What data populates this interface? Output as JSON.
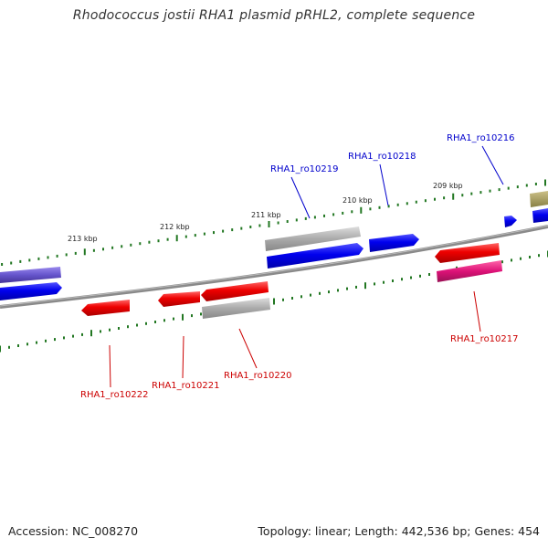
{
  "title": "Rhodococcus jostii RHA1 plasmid pRHL2, complete sequence",
  "footer": {
    "accession": "Accession: NC_008270",
    "topology": "Topology: linear; Length: 442,536 bp; Genes: 454"
  },
  "ticks": [
    {
      "label": "213 kbp"
    },
    {
      "label": "212 kbp"
    },
    {
      "label": "211 kbp"
    },
    {
      "label": "210 kbp"
    },
    {
      "label": "209 kbp"
    }
  ],
  "gene_labels": [
    {
      "text": "RHA1_ro10219",
      "color": "#0000cc"
    },
    {
      "text": "RHA1_ro10218",
      "color": "#0000cc"
    },
    {
      "text": "RHA1_ro10216",
      "color": "#0000cc"
    },
    {
      "text": "RHA1_ro10222",
      "color": "#cc0000"
    },
    {
      "text": "RHA1_ro10221",
      "color": "#cc0000"
    },
    {
      "text": "RHA1_ro10220",
      "color": "#cc0000"
    },
    {
      "text": "RHA1_ro10217",
      "color": "#cc0000"
    }
  ],
  "colors": {
    "forward": "#0000ee",
    "reverse": "#ee0000",
    "gray": "#aaaaaa",
    "purple": "#6655cc",
    "magenta": "#dd1177",
    "olive": "#aaa066",
    "backbone": "#777777",
    "tick": "#227722"
  }
}
